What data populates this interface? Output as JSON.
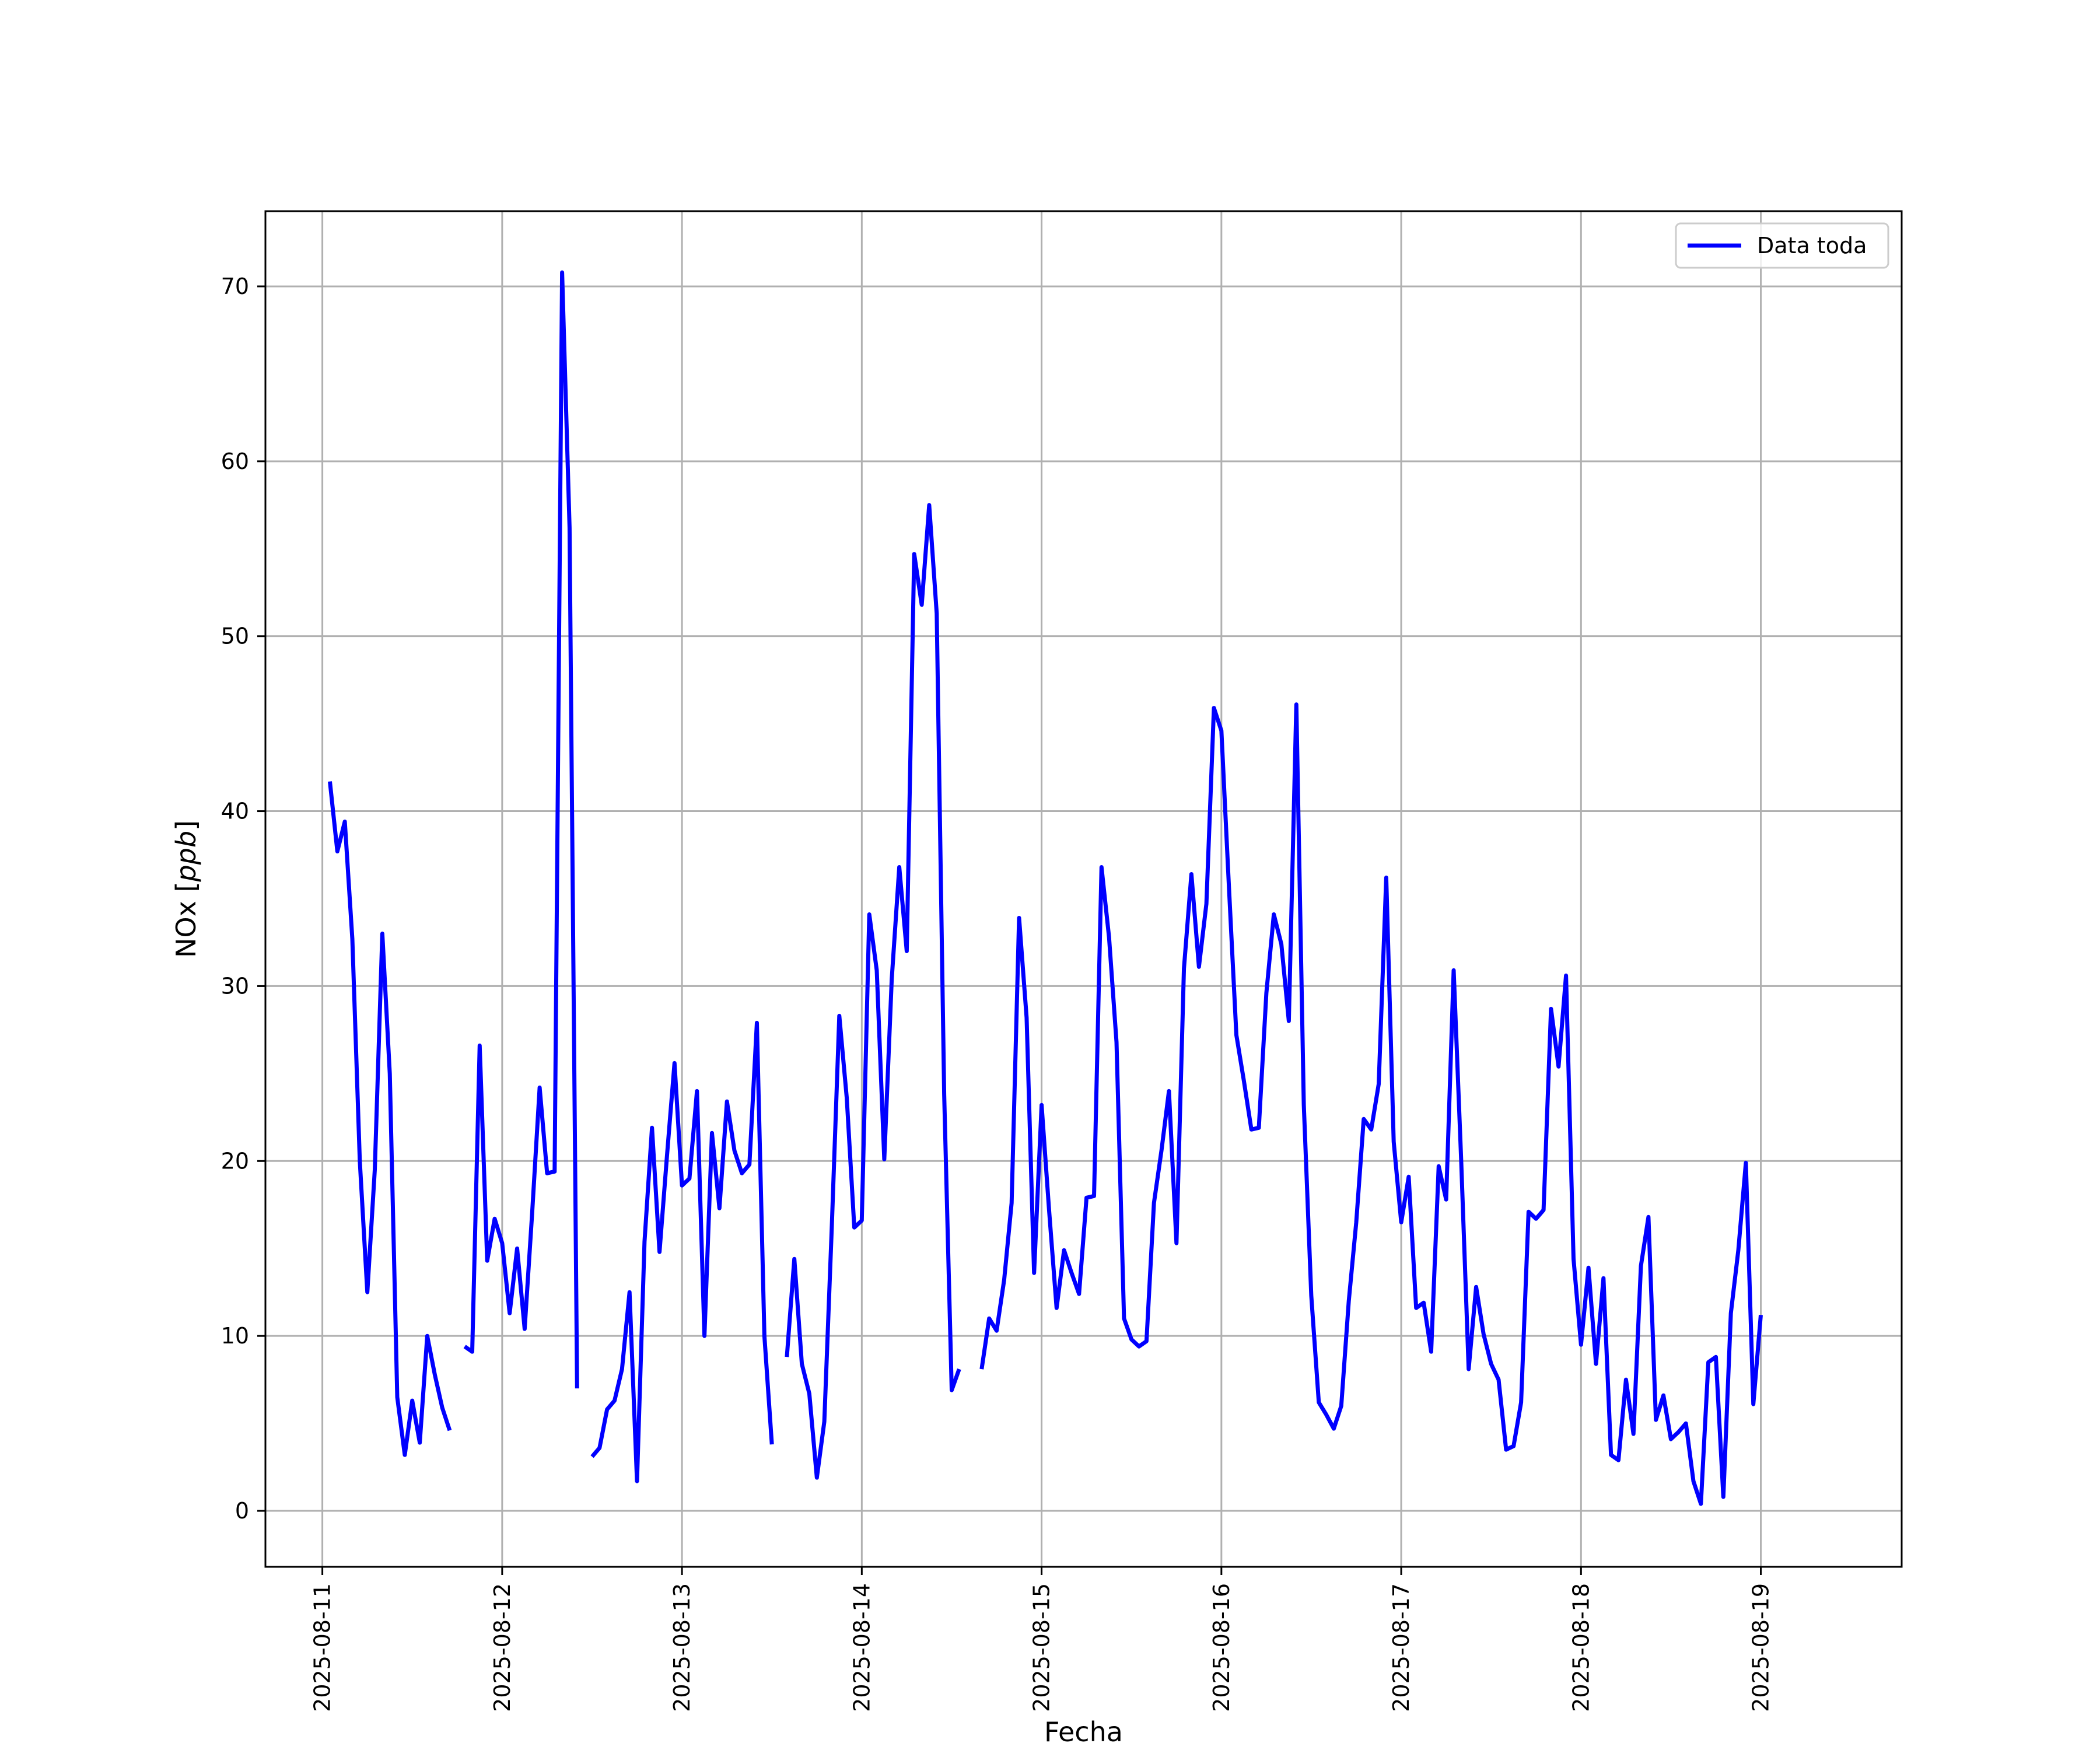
{
  "chart_data": {
    "type": "line",
    "xlabel": "Fecha",
    "ylabel": "NOx [ppb]",
    "ylabel_main": "NOx",
    "ylabel_unit": "ppb",
    "x_ticks": [
      "2025-08-11",
      "2025-08-12",
      "2025-08-13",
      "2025-08-14",
      "2025-08-15",
      "2025-08-16",
      "2025-08-17",
      "2025-08-18",
      "2025-08-19"
    ],
    "y_ticks": [
      0,
      10,
      20,
      30,
      40,
      50,
      60,
      70
    ],
    "xlim": [
      "2025-08-10 16:24",
      "2025-08-19 18:48"
    ],
    "ylim": [
      -3.2,
      74.3
    ],
    "grid": true,
    "legend_position": "top-right",
    "colors": {
      "series": "#0000ff",
      "grid": "#b0b0b0",
      "frame": "#000000"
    },
    "series": [
      {
        "name": "Data toda",
        "segments": [
          [
            [
              "2025-08-11 01:00",
              41.7
            ],
            [
              "2025-08-11 02:00",
              37.7
            ],
            [
              "2025-08-11 03:00",
              39.4
            ],
            [
              "2025-08-11 04:00",
              32.7
            ],
            [
              "2025-08-11 05:00",
              20.0
            ],
            [
              "2025-08-11 06:00",
              12.5
            ],
            [
              "2025-08-11 07:00",
              19.5
            ],
            [
              "2025-08-11 08:00",
              33.0
            ],
            [
              "2025-08-11 09:00",
              25.0
            ],
            [
              "2025-08-11 10:00",
              6.5
            ],
            [
              "2025-08-11 11:00",
              3.2
            ],
            [
              "2025-08-11 12:00",
              6.3
            ],
            [
              "2025-08-11 13:00",
              3.9
            ],
            [
              "2025-08-11 14:00",
              10.0
            ],
            [
              "2025-08-11 15:00",
              7.8
            ],
            [
              "2025-08-11 16:00",
              5.9
            ],
            [
              "2025-08-11 17:00",
              4.6
            ]
          ],
          [
            [
              "2025-08-11 19:00",
              9.4
            ],
            [
              "2025-08-11 20:00",
              9.1
            ],
            [
              "2025-08-11 21:00",
              26.6
            ],
            [
              "2025-08-11 22:00",
              14.3
            ],
            [
              "2025-08-11 23:00",
              16.7
            ],
            [
              "2025-08-12 00:00",
              15.3
            ],
            [
              "2025-08-12 01:00",
              11.3
            ],
            [
              "2025-08-12 02:00",
              15.0
            ],
            [
              "2025-08-12 03:00",
              10.4
            ],
            [
              "2025-08-12 04:00",
              17.0
            ],
            [
              "2025-08-12 05:00",
              24.2
            ],
            [
              "2025-08-12 06:00",
              19.3
            ],
            [
              "2025-08-12 07:00",
              19.4
            ],
            [
              "2025-08-12 08:00",
              70.8
            ],
            [
              "2025-08-12 09:00",
              56.2
            ],
            [
              "2025-08-12 10:00",
              7.0
            ]
          ],
          [
            [
              "2025-08-12 12:00",
              3.1
            ],
            [
              "2025-08-12 13:00",
              3.6
            ],
            [
              "2025-08-12 14:00",
              5.8
            ],
            [
              "2025-08-12 15:00",
              6.3
            ],
            [
              "2025-08-12 16:00",
              8.1
            ],
            [
              "2025-08-12 17:00",
              12.5
            ],
            [
              "2025-08-12 18:00",
              1.7
            ],
            [
              "2025-08-12 19:00",
              15.4
            ],
            [
              "2025-08-12 20:00",
              21.9
            ],
            [
              "2025-08-12 21:00",
              14.8
            ],
            [
              "2025-08-12 22:00",
              20.3
            ],
            [
              "2025-08-12 23:00",
              25.6
            ],
            [
              "2025-08-13 00:00",
              18.6
            ],
            [
              "2025-08-13 01:00",
              19.0
            ],
            [
              "2025-08-13 02:00",
              24.0
            ],
            [
              "2025-08-13 03:00",
              10.0
            ],
            [
              "2025-08-13 04:00",
              21.6
            ],
            [
              "2025-08-13 05:00",
              17.3
            ],
            [
              "2025-08-13 06:00",
              23.4
            ],
            [
              "2025-08-13 07:00",
              20.6
            ],
            [
              "2025-08-13 08:00",
              19.3
            ],
            [
              "2025-08-13 09:00",
              19.8
            ],
            [
              "2025-08-13 10:00",
              27.9
            ],
            [
              "2025-08-13 11:00",
              10.0
            ],
            [
              "2025-08-13 12:00",
              3.8
            ]
          ],
          [
            [
              "2025-08-13 14:00",
              8.8
            ],
            [
              "2025-08-13 15:00",
              14.4
            ],
            [
              "2025-08-13 16:00",
              8.4
            ],
            [
              "2025-08-13 17:00",
              6.7
            ],
            [
              "2025-08-13 18:00",
              1.9
            ],
            [
              "2025-08-13 19:00",
              5.1
            ],
            [
              "2025-08-13 20:00",
              16.3
            ],
            [
              "2025-08-13 21:00",
              28.3
            ],
            [
              "2025-08-13 22:00",
              23.6
            ],
            [
              "2025-08-13 23:00",
              16.2
            ],
            [
              "2025-08-14 00:00",
              16.6
            ],
            [
              "2025-08-14 01:00",
              34.1
            ],
            [
              "2025-08-14 02:00",
              30.9
            ],
            [
              "2025-08-14 03:00",
              20.1
            ],
            [
              "2025-08-14 04:00",
              30.4
            ],
            [
              "2025-08-14 05:00",
              36.8
            ],
            [
              "2025-08-14 06:00",
              32.0
            ],
            [
              "2025-08-14 07:00",
              54.7
            ],
            [
              "2025-08-14 08:00",
              51.8
            ],
            [
              "2025-08-14 09:00",
              57.5
            ],
            [
              "2025-08-14 10:00",
              51.3
            ],
            [
              "2025-08-14 11:00",
              23.8
            ],
            [
              "2025-08-14 12:00",
              6.9
            ],
            [
              "2025-08-14 13:00",
              8.1
            ]
          ],
          [
            [
              "2025-08-14 16:00",
              8.1
            ],
            [
              "2025-08-14 17:00",
              11.0
            ],
            [
              "2025-08-14 18:00",
              10.3
            ],
            [
              "2025-08-14 19:00",
              13.2
            ],
            [
              "2025-08-14 20:00",
              17.6
            ],
            [
              "2025-08-14 21:00",
              33.9
            ],
            [
              "2025-08-14 22:00",
              28.2
            ],
            [
              "2025-08-14 23:00",
              13.6
            ],
            [
              "2025-08-15 00:00",
              23.2
            ],
            [
              "2025-08-15 01:00",
              17.2
            ],
            [
              "2025-08-15 02:00",
              11.6
            ],
            [
              "2025-08-15 03:00",
              14.9
            ],
            [
              "2025-08-15 04:00",
              13.6
            ],
            [
              "2025-08-15 05:00",
              12.4
            ],
            [
              "2025-08-15 06:00",
              17.9
            ],
            [
              "2025-08-15 07:00",
              18.0
            ],
            [
              "2025-08-15 08:00",
              36.8
            ],
            [
              "2025-08-15 09:00",
              32.8
            ],
            [
              "2025-08-15 10:00",
              26.8
            ],
            [
              "2025-08-15 11:00",
              11.0
            ],
            [
              "2025-08-15 12:00",
              9.8
            ],
            [
              "2025-08-15 13:00",
              9.4
            ],
            [
              "2025-08-15 14:00",
              9.7
            ],
            [
              "2025-08-15 15:00",
              17.6
            ],
            [
              "2025-08-15 16:00",
              20.6
            ],
            [
              "2025-08-15 17:00",
              24.0
            ],
            [
              "2025-08-15 18:00",
              15.3
            ],
            [
              "2025-08-15 19:00",
              31.0
            ],
            [
              "2025-08-15 20:00",
              36.4
            ],
            [
              "2025-08-15 21:00",
              31.1
            ],
            [
              "2025-08-15 22:00",
              34.7
            ],
            [
              "2025-08-15 23:00",
              45.9
            ],
            [
              "2025-08-16 00:00",
              44.6
            ],
            [
              "2025-08-16 01:00",
              35.7
            ],
            [
              "2025-08-16 02:00",
              27.2
            ],
            [
              "2025-08-16 03:00",
              24.6
            ],
            [
              "2025-08-16 04:00",
              21.8
            ],
            [
              "2025-08-16 05:00",
              21.9
            ],
            [
              "2025-08-16 06:00",
              29.6
            ],
            [
              "2025-08-16 07:00",
              34.1
            ],
            [
              "2025-08-16 08:00",
              32.4
            ],
            [
              "2025-08-16 09:00",
              28.0
            ],
            [
              "2025-08-16 10:00",
              46.1
            ],
            [
              "2025-08-16 11:00",
              23.2
            ],
            [
              "2025-08-16 12:00",
              12.3
            ],
            [
              "2025-08-16 13:00",
              6.2
            ],
            [
              "2025-08-16 14:00",
              5.5
            ],
            [
              "2025-08-16 15:00",
              4.7
            ],
            [
              "2025-08-16 16:00",
              6.0
            ],
            [
              "2025-08-16 17:00",
              12.0
            ],
            [
              "2025-08-16 18:00",
              16.5
            ],
            [
              "2025-08-16 19:00",
              22.4
            ],
            [
              "2025-08-16 20:00",
              21.8
            ],
            [
              "2025-08-16 21:00",
              24.4
            ],
            [
              "2025-08-16 22:00",
              36.2
            ],
            [
              "2025-08-16 23:00",
              21.1
            ],
            [
              "2025-08-17 00:00",
              16.5
            ],
            [
              "2025-08-17 01:00",
              19.1
            ],
            [
              "2025-08-17 02:00",
              11.6
            ],
            [
              "2025-08-17 03:00",
              11.9
            ],
            [
              "2025-08-17 04:00",
              9.1
            ],
            [
              "2025-08-17 05:00",
              19.7
            ],
            [
              "2025-08-17 06:00",
              17.8
            ],
            [
              "2025-08-17 07:00",
              30.9
            ],
            [
              "2025-08-17 08:00",
              20.1
            ],
            [
              "2025-08-17 09:00",
              8.1
            ],
            [
              "2025-08-17 10:00",
              12.8
            ],
            [
              "2025-08-17 11:00",
              10.1
            ],
            [
              "2025-08-17 12:00",
              8.4
            ],
            [
              "2025-08-17 13:00",
              7.5
            ],
            [
              "2025-08-17 14:00",
              3.5
            ],
            [
              "2025-08-17 15:00",
              3.7
            ],
            [
              "2025-08-17 16:00",
              6.2
            ],
            [
              "2025-08-17 17:00",
              17.1
            ],
            [
              "2025-08-17 18:00",
              16.7
            ],
            [
              "2025-08-17 19:00",
              17.2
            ],
            [
              "2025-08-17 20:00",
              28.7
            ],
            [
              "2025-08-17 21:00",
              25.4
            ],
            [
              "2025-08-17 22:00",
              30.6
            ],
            [
              "2025-08-17 23:00",
              14.4
            ],
            [
              "2025-08-18 00:00",
              9.5
            ],
            [
              "2025-08-18 01:00",
              13.9
            ],
            [
              "2025-08-18 02:00",
              8.4
            ],
            [
              "2025-08-18 03:00",
              13.3
            ],
            [
              "2025-08-18 04:00",
              3.2
            ],
            [
              "2025-08-18 05:00",
              2.9
            ],
            [
              "2025-08-18 06:00",
              7.5
            ],
            [
              "2025-08-18 07:00",
              4.4
            ],
            [
              "2025-08-18 08:00",
              14.0
            ],
            [
              "2025-08-18 09:00",
              16.8
            ],
            [
              "2025-08-18 10:00",
              5.2
            ],
            [
              "2025-08-18 11:00",
              6.6
            ],
            [
              "2025-08-18 12:00",
              4.1
            ],
            [
              "2025-08-18 13:00",
              4.5
            ],
            [
              "2025-08-18 14:00",
              5.0
            ],
            [
              "2025-08-18 15:00",
              1.7
            ],
            [
              "2025-08-18 16:00",
              0.4
            ],
            [
              "2025-08-18 17:00",
              8.5
            ],
            [
              "2025-08-18 18:00",
              8.8
            ],
            [
              "2025-08-18 19:00",
              0.8
            ],
            [
              "2025-08-18 20:00",
              11.3
            ],
            [
              "2025-08-18 21:00",
              14.9
            ],
            [
              "2025-08-18 22:00",
              19.9
            ],
            [
              "2025-08-18 23:00",
              6.1
            ],
            [
              "2025-08-19 00:00",
              11.2
            ]
          ]
        ]
      }
    ]
  }
}
